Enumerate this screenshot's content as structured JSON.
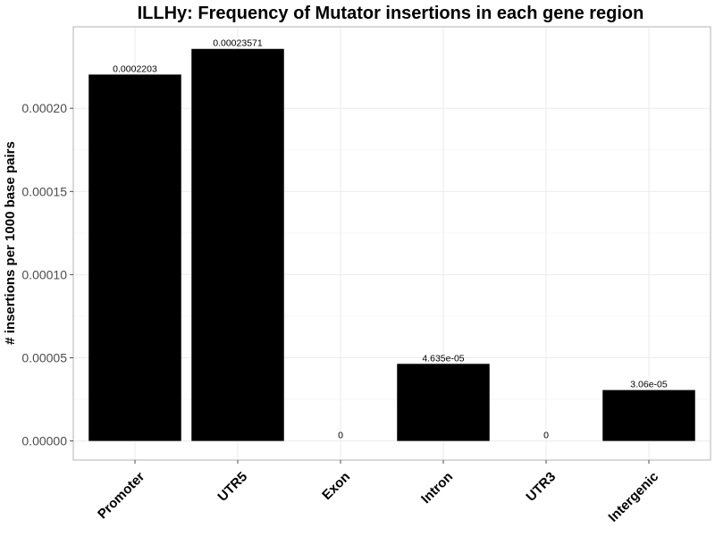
{
  "chart_data": {
    "type": "bar",
    "title": "ILLHy: Frequency of Mutator insertions in each gene region",
    "xlabel": "",
    "ylabel": "# insertions per 1000 base pairs",
    "categories": [
      "Promoter",
      "UTR5",
      "Exon",
      "Intron",
      "UTR3",
      "Intergenic"
    ],
    "values": [
      0.0002203,
      0.00023571,
      0,
      4.635e-05,
      0,
      3.06e-05
    ],
    "data_labels": [
      "0.0002203",
      "0.00023571",
      "0",
      "4.635e-05",
      "0",
      "3.06e-05"
    ],
    "yticks": [
      0,
      5e-05,
      0.0001,
      0.00015,
      0.0002
    ],
    "ytick_labels": [
      "0.00000",
      "0.00005",
      "0.00010",
      "0.00015",
      "0.00020"
    ],
    "ylim": [
      -1.15e-05,
      0.000249
    ],
    "grid": true,
    "bar_color": "#000000"
  }
}
